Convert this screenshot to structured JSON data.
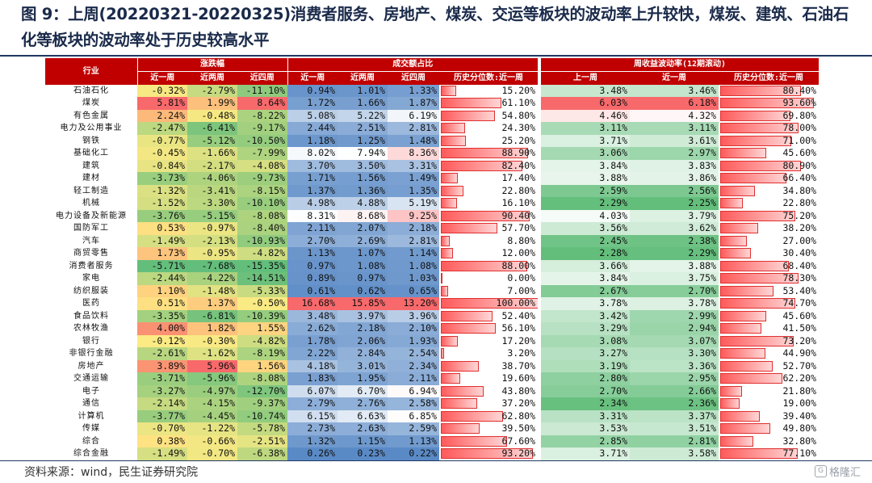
{
  "title": "图 9：上周(20220321-20220325)消费者服务、房地产、煤炭、交运等板块的波动率上升较快，煤炭、建筑、石油石化等板块的波动率处于历史较高水平",
  "source": "资料来源：wind，民生证券研究院",
  "watermark": "格隆汇",
  "header": {
    "industry": "行业",
    "group_change": "涨跌幅",
    "group_turnover": "成交额占比",
    "group_vol": "周收益波动率(12期滚动)",
    "sub_1w": "近一周",
    "sub_2w": "近两周",
    "sub_4w": "近四周",
    "sub_pct_1w": "历史分位数:近一周",
    "sub_last_w": "上一周",
    "sub_this_w": "近一周"
  },
  "rows": [
    {
      "name": "石油石化",
      "c1": "-0.32%",
      "c2": "-2.79%",
      "c4": "-11.10%",
      "t1": "0.94%",
      "t2": "1.01%",
      "t3": "1.33%",
      "tp": "15.20%",
      "v1": "3.48%",
      "v2": "3.46%",
      "vp": "80.40%"
    },
    {
      "name": "煤炭",
      "c1": "5.81%",
      "c2": "1.99%",
      "c4": "8.64%",
      "t1": "1.72%",
      "t2": "1.66%",
      "t3": "1.87%",
      "tp": "61.10%",
      "v1": "6.03%",
      "v2": "6.18%",
      "vp": "93.60%"
    },
    {
      "name": "有色金属",
      "c1": "2.24%",
      "c2": "-0.48%",
      "c4": "-8.22%",
      "t1": "5.08%",
      "t2": "5.22%",
      "t3": "6.19%",
      "tp": "54.80%",
      "v1": "4.46%",
      "v2": "4.32%",
      "vp": "69.80%"
    },
    {
      "name": "电力及公用事业",
      "c1": "-2.47%",
      "c2": "-6.41%",
      "c4": "-9.17%",
      "t1": "2.44%",
      "t2": "2.51%",
      "t3": "2.81%",
      "tp": "24.30%",
      "v1": "3.11%",
      "v2": "3.11%",
      "vp": "78.00%"
    },
    {
      "name": "钢铁",
      "c1": "-0.77%",
      "c2": "-5.12%",
      "c4": "-10.50%",
      "t1": "1.18%",
      "t2": "1.25%",
      "t3": "1.48%",
      "tp": "25.20%",
      "v1": "3.71%",
      "v2": "3.61%",
      "vp": "71.00%"
    },
    {
      "name": "基础化工",
      "c1": "-0.45%",
      "c2": "-1.66%",
      "c4": "-7.99%",
      "t1": "8.02%",
      "t2": "7.94%",
      "t3": "8.36%",
      "tp": "88.90%",
      "v1": "3.06%",
      "v2": "2.97%",
      "vp": "45.60%"
    },
    {
      "name": "建筑",
      "c1": "-0.84%",
      "c2": "-2.17%",
      "c4": "-4.08%",
      "t1": "3.70%",
      "t2": "3.50%",
      "t3": "3.31%",
      "tp": "82.40%",
      "v1": "3.84%",
      "v2": "3.83%",
      "vp": "80.90%"
    },
    {
      "name": "建材",
      "c1": "-3.73%",
      "c2": "-4.06%",
      "c4": "-9.73%",
      "t1": "1.71%",
      "t2": "1.56%",
      "t3": "1.49%",
      "tp": "17.40%",
      "v1": "3.88%",
      "v2": "3.86%",
      "vp": "66.40%"
    },
    {
      "name": "轻工制造",
      "c1": "-1.32%",
      "c2": "-3.41%",
      "c4": "-8.15%",
      "t1": "1.37%",
      "t2": "1.36%",
      "t3": "1.35%",
      "tp": "22.80%",
      "v1": "2.59%",
      "v2": "2.56%",
      "vp": "34.80%"
    },
    {
      "name": "机械",
      "c1": "-1.52%",
      "c2": "-3.30%",
      "c4": "-10.10%",
      "t1": "4.98%",
      "t2": "4.88%",
      "t3": "5.19%",
      "tp": "16.10%",
      "v1": "2.29%",
      "v2": "2.25%",
      "vp": "22.80%"
    },
    {
      "name": "电力设备及新能源",
      "c1": "-3.76%",
      "c2": "-5.15%",
      "c4": "-8.08%",
      "t1": "8.31%",
      "t2": "8.68%",
      "t3": "9.25%",
      "tp": "90.40%",
      "v1": "4.03%",
      "v2": "3.79%",
      "vp": "75.20%"
    },
    {
      "name": "国防军工",
      "c1": "0.53%",
      "c2": "-0.97%",
      "c4": "-8.40%",
      "t1": "2.11%",
      "t2": "2.07%",
      "t3": "2.18%",
      "tp": "57.70%",
      "v1": "3.56%",
      "v2": "3.62%",
      "vp": "38.20%"
    },
    {
      "name": "汽车",
      "c1": "-1.49%",
      "c2": "-2.13%",
      "c4": "-10.93%",
      "t1": "2.70%",
      "t2": "2.69%",
      "t3": "2.81%",
      "tp": "8.80%",
      "v1": "2.45%",
      "v2": "2.38%",
      "vp": "27.00%"
    },
    {
      "name": "商贸零售",
      "c1": "1.73%",
      "c2": "-0.95%",
      "c4": "-4.82%",
      "t1": "1.13%",
      "t2": "1.07%",
      "t3": "1.14%",
      "tp": "12.00%",
      "v1": "2.28%",
      "v2": "2.29%",
      "vp": "30.40%"
    },
    {
      "name": "消费者服务",
      "c1": "-5.71%",
      "c2": "-7.68%",
      "c4": "-15.35%",
      "t1": "0.97%",
      "t2": "1.08%",
      "t3": "1.08%",
      "tp": "88.00%",
      "v1": "3.66%",
      "v2": "3.88%",
      "vp": "68.40%"
    },
    {
      "name": "家电",
      "c1": "-2.44%",
      "c2": "-4.22%",
      "c4": "-14.51%",
      "t1": "0.89%",
      "t2": "0.97%",
      "t3": "1.03%",
      "tp": "0.00%",
      "v1": "3.84%",
      "v2": "3.75%",
      "vp": "78.30%"
    },
    {
      "name": "纺织服装",
      "c1": "1.10%",
      "c2": "-1.48%",
      "c4": "-5.33%",
      "t1": "0.61%",
      "t2": "0.62%",
      "t3": "0.65%",
      "tp": "7.00%",
      "v1": "2.67%",
      "v2": "2.70%",
      "vp": "53.40%"
    },
    {
      "name": "医药",
      "c1": "0.51%",
      "c2": "1.37%",
      "c4": "-0.50%",
      "t1": "16.68%",
      "t2": "15.85%",
      "t3": "13.20%",
      "tp": "100.00%",
      "v1": "3.78%",
      "v2": "3.78%",
      "vp": "74.70%"
    },
    {
      "name": "食品饮料",
      "c1": "-3.35%",
      "c2": "-6.81%",
      "c4": "-10.39%",
      "t1": "3.48%",
      "t2": "3.97%",
      "t3": "3.96%",
      "tp": "52.40%",
      "v1": "3.42%",
      "v2": "2.99%",
      "vp": "45.60%"
    },
    {
      "name": "农林牧渔",
      "c1": "4.00%",
      "c2": "1.82%",
      "c4": "1.55%",
      "t1": "2.62%",
      "t2": "2.18%",
      "t3": "2.10%",
      "tp": "56.10%",
      "v1": "3.29%",
      "v2": "2.94%",
      "vp": "41.50%"
    },
    {
      "name": "银行",
      "c1": "-0.12%",
      "c2": "-0.30%",
      "c4": "-4.82%",
      "t1": "1.78%",
      "t2": "2.06%",
      "t3": "1.93%",
      "tp": "17.20%",
      "v1": "3.08%",
      "v2": "3.07%",
      "vp": "73.20%"
    },
    {
      "name": "非银行金融",
      "c1": "-2.61%",
      "c2": "-1.62%",
      "c4": "-8.19%",
      "t1": "2.22%",
      "t2": "2.84%",
      "t3": "2.54%",
      "tp": "3.20%",
      "v1": "3.27%",
      "v2": "3.30%",
      "vp": "44.90%"
    },
    {
      "name": "房地产",
      "c1": "3.89%",
      "c2": "5.96%",
      "c4": "1.56%",
      "t1": "4.18%",
      "t2": "3.01%",
      "t3": "2.34%",
      "tp": "38.70%",
      "v1": "3.19%",
      "v2": "3.36%",
      "vp": "52.70%"
    },
    {
      "name": "交通运输",
      "c1": "-3.71%",
      "c2": "-5.96%",
      "c4": "-8.08%",
      "t1": "1.83%",
      "t2": "1.95%",
      "t3": "2.11%",
      "tp": "19.60%",
      "v1": "2.80%",
      "v2": "2.95%",
      "vp": "62.20%"
    },
    {
      "name": "电子",
      "c1": "-3.27%",
      "c2": "-4.97%",
      "c4": "-12.70%",
      "t1": "6.07%",
      "t2": "6.70%",
      "t3": "6.94%",
      "tp": "43.80%",
      "v1": "2.70%",
      "v2": "2.66%",
      "vp": "21.80%"
    },
    {
      "name": "通信",
      "c1": "-2.14%",
      "c2": "-4.15%",
      "c4": "-9.37%",
      "t1": "2.79%",
      "t2": "2.76%",
      "t3": "2.58%",
      "tp": "37.20%",
      "v1": "2.34%",
      "v2": "2.36%",
      "vp": "19.00%"
    },
    {
      "name": "计算机",
      "c1": "-3.77%",
      "c2": "-4.45%",
      "c4": "-10.74%",
      "t1": "6.15%",
      "t2": "6.63%",
      "t3": "6.85%",
      "tp": "62.80%",
      "v1": "3.31%",
      "v2": "3.37%",
      "vp": "39.40%"
    },
    {
      "name": "传媒",
      "c1": "-0.70%",
      "c2": "-1.22%",
      "c4": "-5.78%",
      "t1": "2.73%",
      "t2": "2.63%",
      "t3": "2.59%",
      "tp": "39.50%",
      "v1": "3.53%",
      "v2": "3.51%",
      "vp": "49.80%"
    },
    {
      "name": "综合",
      "c1": "0.38%",
      "c2": "-0.66%",
      "c4": "-2.51%",
      "t1": "1.32%",
      "t2": "1.15%",
      "t3": "1.13%",
      "tp": "67.60%",
      "v1": "2.85%",
      "v2": "2.81%",
      "vp": "32.80%"
    },
    {
      "name": "综合金融",
      "c1": "-1.49%",
      "c2": "-0.70%",
      "c4": "-6.38%",
      "t1": "0.26%",
      "t2": "0.23%",
      "t3": "0.22%",
      "tp": "93.20%",
      "v1": "3.71%",
      "v2": "3.58%",
      "vp": "77.10%"
    }
  ]
}
